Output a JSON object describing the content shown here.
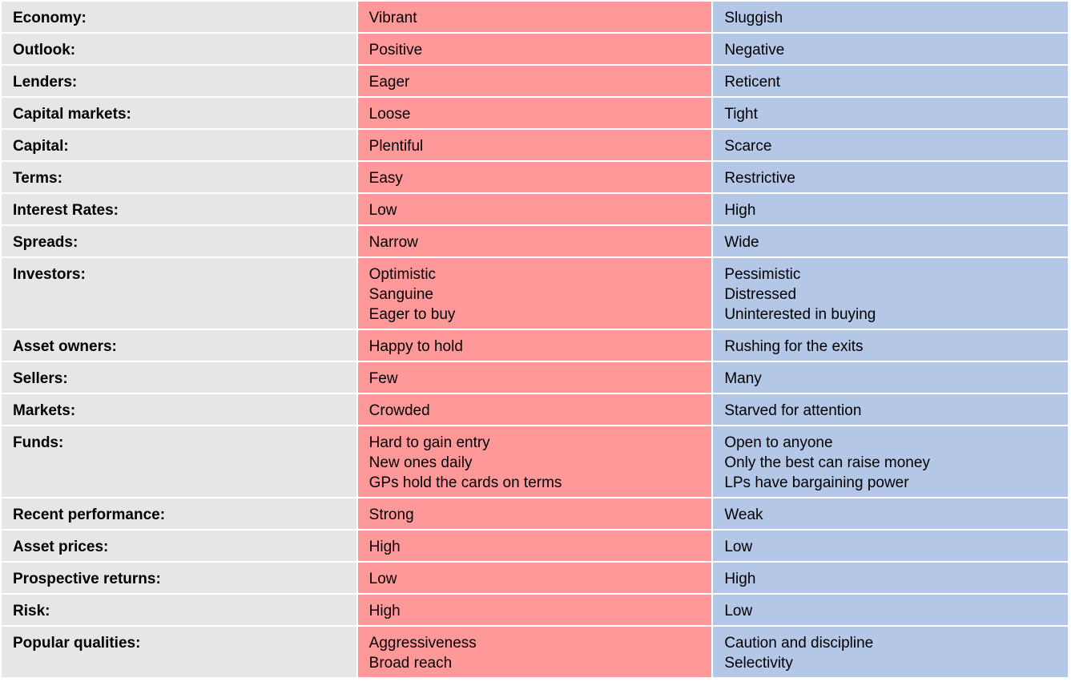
{
  "table": {
    "rows": [
      {
        "label": "Economy:",
        "left": [
          "Vibrant"
        ],
        "right": [
          "Sluggish"
        ]
      },
      {
        "label": "Outlook:",
        "left": [
          "Positive"
        ],
        "right": [
          "Negative"
        ]
      },
      {
        "label": "Lenders:",
        "left": [
          "Eager"
        ],
        "right": [
          "Reticent"
        ]
      },
      {
        "label": "Capital markets:",
        "left": [
          "Loose"
        ],
        "right": [
          "Tight"
        ]
      },
      {
        "label": "Capital:",
        "left": [
          "Plentiful"
        ],
        "right": [
          "Scarce"
        ]
      },
      {
        "label": "Terms:",
        "left": [
          "Easy"
        ],
        "right": [
          "Restrictive"
        ]
      },
      {
        "label": "Interest Rates:",
        "left": [
          "Low"
        ],
        "right": [
          "High"
        ]
      },
      {
        "label": "Spreads:",
        "left": [
          "Narrow"
        ],
        "right": [
          "Wide"
        ]
      },
      {
        "label": "Investors:",
        "left": [
          "Optimistic",
          "Sanguine",
          "Eager to buy"
        ],
        "right": [
          "Pessimistic",
          "Distressed",
          "Uninterested in buying"
        ]
      },
      {
        "label": "Asset owners:",
        "left": [
          "Happy to hold"
        ],
        "right": [
          "Rushing for the exits"
        ]
      },
      {
        "label": "Sellers:",
        "left": [
          "Few"
        ],
        "right": [
          "Many"
        ]
      },
      {
        "label": "Markets:",
        "left": [
          "Crowded"
        ],
        "right": [
          "Starved for attention"
        ]
      },
      {
        "label": "Funds:",
        "left": [
          "Hard to gain entry",
          "New ones daily",
          "GPs hold the cards on terms"
        ],
        "right": [
          "Open to anyone",
          "Only the best can raise money",
          "LPs have bargaining power"
        ]
      },
      {
        "label": "Recent performance:",
        "left": [
          "Strong"
        ],
        "right": [
          "Weak"
        ]
      },
      {
        "label": "Asset prices:",
        "left": [
          "High"
        ],
        "right": [
          "Low"
        ]
      },
      {
        "label": "Prospective returns:",
        "left": [
          "Low"
        ],
        "right": [
          "High"
        ]
      },
      {
        "label": "Risk:",
        "left": [
          "High"
        ],
        "right": [
          "Low"
        ]
      },
      {
        "label": "Popular qualities:",
        "left": [
          "Aggressiveness",
          "Broad reach"
        ],
        "right": [
          "Caution and discipline",
          "Selectivity"
        ]
      }
    ]
  }
}
